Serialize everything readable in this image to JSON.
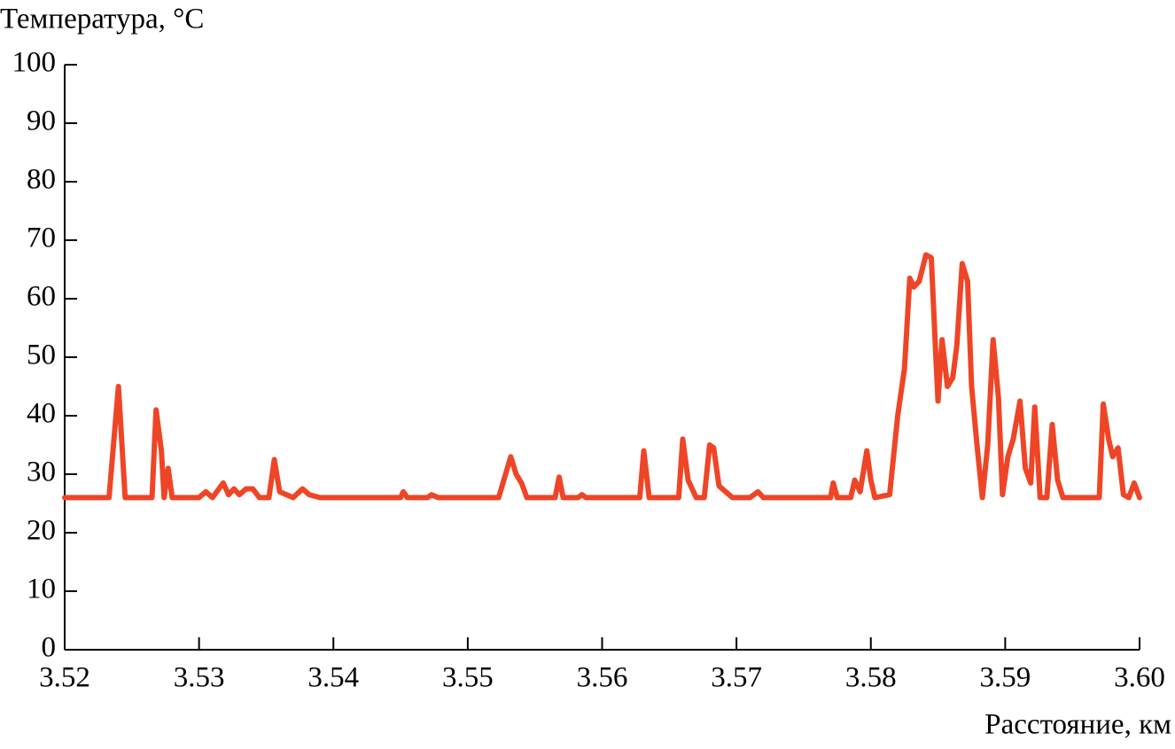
{
  "chart_data": {
    "type": "line",
    "y_label": "Температура, °C",
    "x_label": "Расстояние, км",
    "xlim": [
      3.52,
      3.6
    ],
    "xticks": [
      3.52,
      3.53,
      3.54,
      3.55,
      3.56,
      3.57,
      3.58,
      3.59,
      {
        "value": 3.6,
        "label": "3.60"
      }
    ],
    "ylim": [
      0,
      100
    ],
    "yticks": [
      0,
      10,
      20,
      30,
      40,
      50,
      60,
      70,
      80,
      90,
      100
    ],
    "grid": false,
    "color": "#ef4527",
    "x": [
      3.52,
      3.5233,
      3.524,
      3.5245,
      3.5265,
      3.5268,
      3.5272,
      3.5274,
      3.5277,
      3.528,
      3.53,
      3.5305,
      3.531,
      3.5318,
      3.5322,
      3.5326,
      3.533,
      3.5335,
      3.534,
      3.5345,
      3.5352,
      3.5356,
      3.536,
      3.537,
      3.5377,
      3.5382,
      3.539,
      3.545,
      3.5452,
      3.5455,
      3.547,
      3.5473,
      3.5478,
      3.5523,
      3.5532,
      3.5536,
      3.554,
      3.5544,
      3.5565,
      3.5568,
      3.5571,
      3.5582,
      3.5585,
      3.5588,
      3.5628,
      3.5631,
      3.5635,
      3.5657,
      3.566,
      3.5664,
      3.567,
      3.5676,
      3.568,
      3.5683,
      3.5687,
      3.5692,
      3.5697,
      3.571,
      3.5716,
      3.572,
      3.577,
      3.5772,
      3.5775,
      3.5785,
      3.5788,
      3.5792,
      3.5797,
      3.58,
      3.5803,
      3.5814,
      3.582,
      3.5825,
      3.5829,
      3.5832,
      3.5836,
      3.5841,
      3.5845,
      3.5848,
      3.585,
      3.5853,
      3.5857,
      3.5861,
      3.5864,
      3.5868,
      3.5872,
      3.5875,
      3.5879,
      3.5883,
      3.5887,
      3.5891,
      3.5895,
      3.5898,
      3.5902,
      3.5906,
      3.5911,
      3.5915,
      3.5919,
      3.5922,
      3.5926,
      3.5931,
      3.5935,
      3.5939,
      3.5943,
      3.597,
      3.5973,
      3.5977,
      3.598,
      3.5984,
      3.5988,
      3.5992,
      3.5996,
      3.6
    ],
    "values": [
      26,
      26,
      45,
      26,
      26,
      41,
      34,
      26,
      31,
      26,
      26,
      27,
      26,
      28.5,
      26.5,
      27.5,
      26.5,
      27.5,
      27.5,
      26,
      26,
      32.5,
      27,
      26,
      27.5,
      26.5,
      26,
      26,
      27,
      26,
      26,
      26.5,
      26,
      26,
      33,
      30,
      28.5,
      26,
      26,
      29.5,
      26,
      26,
      26.5,
      26,
      26,
      34,
      26,
      26,
      36,
      29,
      26,
      26,
      35,
      34.5,
      28,
      27,
      26,
      26,
      27,
      26,
      26,
      28.5,
      26,
      26,
      29,
      27,
      34,
      29,
      26,
      26.5,
      40,
      48,
      63.5,
      62,
      63,
      67.5,
      67,
      52,
      42.5,
      53,
      45,
      46.5,
      52,
      66,
      63,
      45,
      35,
      26,
      35,
      53,
      43,
      26.5,
      33,
      36,
      42.5,
      31,
      28.5,
      41.5,
      26,
      26,
      38.5,
      29,
      26,
      26,
      42,
      36,
      33,
      34.5,
      26.5,
      26,
      28.5,
      26
    ]
  }
}
